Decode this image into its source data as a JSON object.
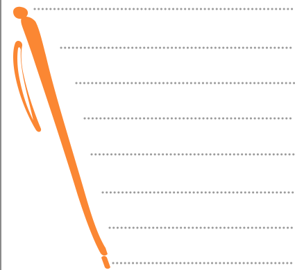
{
  "illustration": {
    "subject": "pen-icon",
    "pen_color": "#FB8733",
    "pen_highlight_color": "#FFFFFF",
    "dot_line_color": "#9B9B9B",
    "frame_color": "#8A8A8A",
    "ruled_line_count": 8
  }
}
